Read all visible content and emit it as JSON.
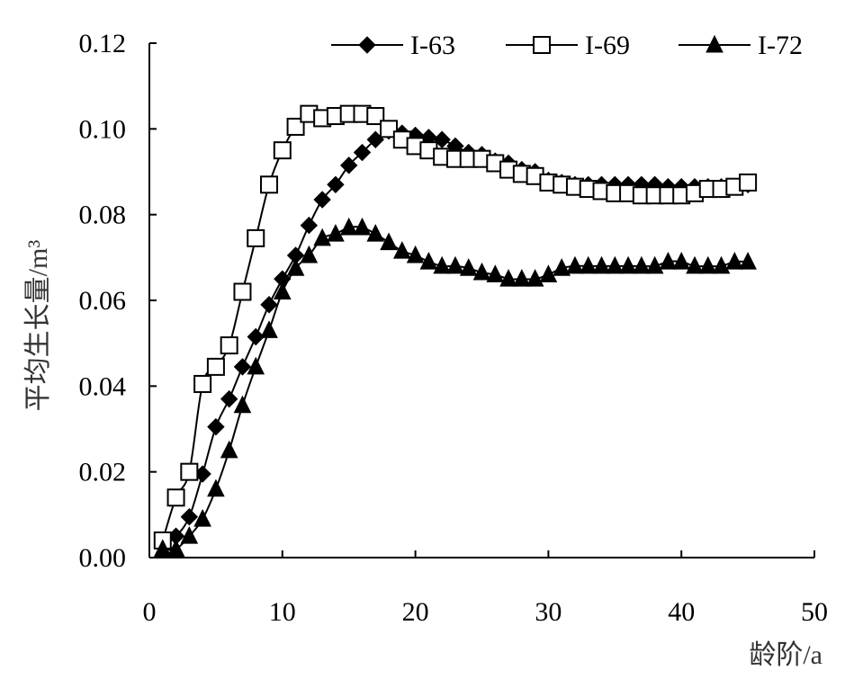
{
  "chart_data": {
    "type": "line",
    "title": "",
    "xlabel": "龄阶/a",
    "ylabel": "平均生长量/m³",
    "xlim": [
      0,
      50
    ],
    "ylim": [
      0,
      0.12
    ],
    "x_ticks": [
      "0",
      "10",
      "20",
      "30",
      "40",
      "50"
    ],
    "y_ticks": [
      "0.00",
      "0.02",
      "0.04",
      "0.06",
      "0.08",
      "0.10",
      "0.12"
    ],
    "grid": false,
    "legend_position": "top-right",
    "x": [
      1,
      2,
      3,
      4,
      5,
      6,
      7,
      8,
      9,
      10,
      11,
      12,
      13,
      14,
      15,
      16,
      17,
      18,
      19,
      20,
      21,
      22,
      23,
      24,
      25,
      26,
      27,
      28,
      29,
      30,
      31,
      32,
      33,
      34,
      35,
      36,
      37,
      38,
      39,
      40,
      41,
      42,
      43,
      44,
      45
    ],
    "series": [
      {
        "name": "I-63",
        "marker": "diamond",
        "values": [
          0.003,
          0.005,
          0.0095,
          0.0195,
          0.0305,
          0.037,
          0.0445,
          0.0515,
          0.059,
          0.065,
          0.0705,
          0.0775,
          0.0835,
          0.087,
          0.0915,
          0.0945,
          0.0975,
          0.0995,
          0.099,
          0.0985,
          0.098,
          0.0975,
          0.096,
          0.0945,
          0.094,
          0.0925,
          0.092,
          0.0905,
          0.09,
          0.088,
          0.0875,
          0.087,
          0.087,
          0.087,
          0.087,
          0.087,
          0.087,
          0.087,
          0.0865,
          0.0865,
          0.0865,
          0.0865,
          0.0865,
          0.0865,
          0.087
        ]
      },
      {
        "name": "I-69",
        "marker": "open-square",
        "values": [
          0.004,
          0.014,
          0.02,
          0.0405,
          0.0445,
          0.0495,
          0.062,
          0.0745,
          0.087,
          0.095,
          0.1005,
          0.1035,
          0.1025,
          0.103,
          0.1035,
          0.1035,
          0.103,
          0.1,
          0.0975,
          0.096,
          0.095,
          0.0935,
          0.093,
          0.093,
          0.093,
          0.092,
          0.0905,
          0.0895,
          0.089,
          0.0875,
          0.087,
          0.0865,
          0.086,
          0.0855,
          0.085,
          0.085,
          0.0845,
          0.0845,
          0.0845,
          0.0845,
          0.085,
          0.086,
          0.086,
          0.0865,
          0.0875
        ]
      },
      {
        "name": "I-72",
        "marker": "triangle",
        "values": [
          0.002,
          0.002,
          0.005,
          0.009,
          0.016,
          0.025,
          0.0355,
          0.0445,
          0.053,
          0.062,
          0.0675,
          0.0705,
          0.0745,
          0.0755,
          0.077,
          0.077,
          0.0755,
          0.0735,
          0.0715,
          0.0705,
          0.069,
          0.068,
          0.068,
          0.0675,
          0.0665,
          0.066,
          0.065,
          0.065,
          0.065,
          0.066,
          0.0675,
          0.068,
          0.068,
          0.068,
          0.068,
          0.068,
          0.068,
          0.068,
          0.069,
          0.069,
          0.068,
          0.068,
          0.068,
          0.069,
          0.069
        ]
      }
    ]
  }
}
